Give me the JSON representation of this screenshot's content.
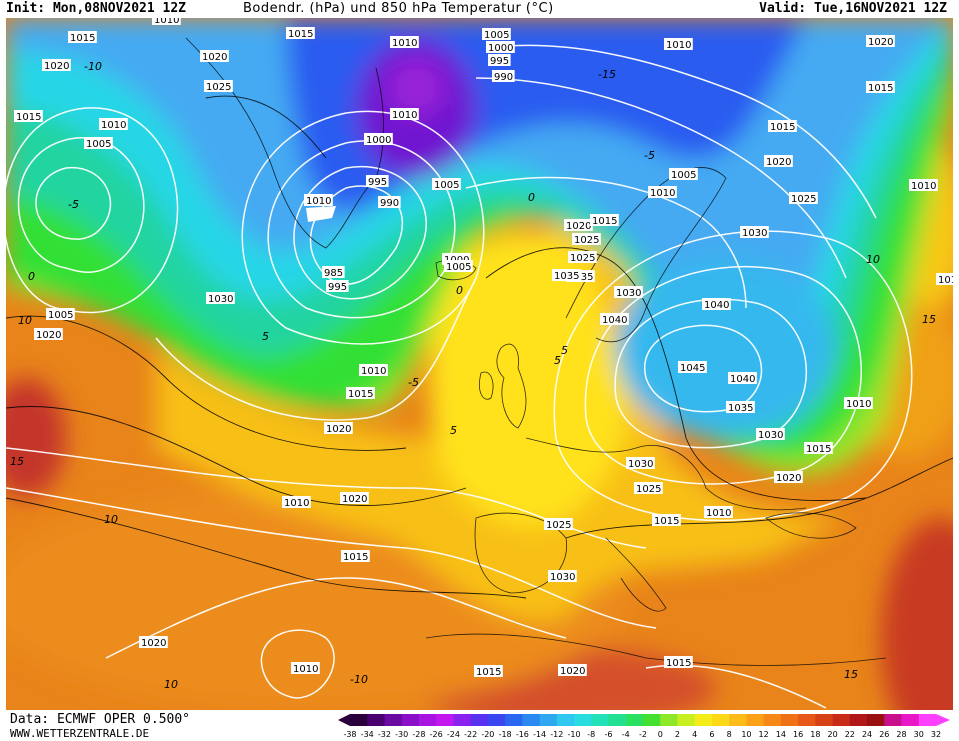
{
  "header": {
    "init": "Init: Mon,08NOV2021 12Z",
    "title": "Bodendr. (hPa) und 850 hPa Temperatur (°C)",
    "valid": "Valid: Tue,16NOV2021 12Z"
  },
  "footer": {
    "data_source": "Data: ECMWF OPER 0.500°",
    "website": "WWW.WETTERZENTRALE.DE"
  },
  "colors": {
    "deep_purple": "#3a005a",
    "purple": "#7a18c8",
    "blue": "#2046e8",
    "light_blue": "#3fa9f5",
    "cyan": "#22d8e6",
    "teal": "#20d49a",
    "green": "#2fe12f",
    "yellow_green": "#c9ef1d",
    "yellow": "#ffe61a",
    "orange": "#f6a414",
    "dark_orange": "#e5781a",
    "red": "#c8342a",
    "isobar": "#ffffff",
    "coastline": "#000000"
  },
  "color_scale": {
    "ticks": [
      "-38",
      "-34",
      "-32",
      "-30",
      "-28",
      "-26",
      "-24",
      "-22",
      "-20",
      "-18",
      "-16",
      "-14",
      "-12",
      "-10",
      "-8",
      "-6",
      "-4",
      "-2",
      "0",
      "2",
      "4",
      "6",
      "8",
      "10",
      "12",
      "14",
      "16",
      "18",
      "20",
      "22",
      "24",
      "26",
      "28",
      "30",
      "32"
    ],
    "colors": [
      "#2a003a",
      "#4a0070",
      "#6a0aa0",
      "#8a10c8",
      "#a814e0",
      "#c218f0",
      "#8a22f0",
      "#5a30f0",
      "#3a46f0",
      "#2a66f0",
      "#2a88f0",
      "#30a8f0",
      "#30c8f0",
      "#28dce0",
      "#22e0b8",
      "#22e090",
      "#2ae060",
      "#44e030",
      "#8ce828",
      "#c8f020",
      "#f4ec18",
      "#ffd818",
      "#ffbc18",
      "#fca018",
      "#f68818",
      "#f07018",
      "#e65818",
      "#d84018",
      "#c82c18",
      "#b01818",
      "#981010",
      "#c8108c",
      "#e818c8",
      "#ff40ff"
    ]
  },
  "isobar_labels": [
    {
      "text": "1010"
    },
    {
      "text": "1015"
    },
    {
      "text": "1020"
    },
    {
      "text": "1025"
    },
    {
      "text": "1015"
    },
    {
      "text": "1010"
    },
    {
      "text": "1005"
    },
    {
      "text": "1010"
    },
    {
      "text": "1005"
    },
    {
      "text": "1000"
    },
    {
      "text": "995"
    },
    {
      "text": "990"
    },
    {
      "text": "1010"
    },
    {
      "text": "1000"
    },
    {
      "text": "995"
    },
    {
      "text": "1010"
    },
    {
      "text": "990"
    },
    {
      "text": "1005"
    },
    {
      "text": "985"
    },
    {
      "text": "995"
    },
    {
      "text": "1000"
    },
    {
      "text": "1005"
    },
    {
      "text": "1010"
    },
    {
      "text": "1020"
    },
    {
      "text": "1015"
    },
    {
      "text": "1005"
    },
    {
      "text": "1010"
    },
    {
      "text": "1015"
    },
    {
      "text": "1020"
    },
    {
      "text": "1025"
    },
    {
      "text": "1030"
    },
    {
      "text": "1035"
    },
    {
      "text": "1040"
    },
    {
      "text": "1045"
    },
    {
      "text": "1040"
    },
    {
      "text": "1035"
    },
    {
      "text": "1030"
    },
    {
      "text": "1025"
    },
    {
      "text": "1020"
    },
    {
      "text": "1015"
    },
    {
      "text": "1010"
    },
    {
      "text": "1030"
    },
    {
      "text": "1020"
    },
    {
      "text": "1025"
    },
    {
      "text": "1020"
    },
    {
      "text": "1015"
    },
    {
      "text": "1020"
    },
    {
      "text": "1010"
    },
    {
      "text": "1015"
    },
    {
      "text": "1015"
    },
    {
      "text": "1025"
    },
    {
      "text": "1030"
    },
    {
      "text": "1020"
    },
    {
      "text": "1015"
    },
    {
      "text": "1010"
    },
    {
      "text": "1010"
    },
    {
      "text": "1015"
    },
    {
      "text": "1025"
    },
    {
      "text": "1030"
    },
    {
      "text": "1020"
    },
    {
      "text": "1010"
    },
    {
      "text": "1015"
    },
    {
      "text": "1020"
    },
    {
      "text": "1010"
    },
    {
      "text": "1005"
    },
    {
      "text": "1015"
    },
    {
      "text": "1020"
    },
    {
      "text": "1010"
    },
    {
      "text": "1035"
    },
    {
      "text": "1030"
    },
    {
      "text": "1040"
    }
  ],
  "temperature_labels": [
    {
      "text": "-10"
    },
    {
      "text": "-15"
    },
    {
      "text": "-5"
    },
    {
      "text": "0"
    },
    {
      "text": "5"
    },
    {
      "text": "10"
    },
    {
      "text": "15"
    },
    {
      "text": "-5"
    },
    {
      "text": "0"
    },
    {
      "text": "5"
    },
    {
      "text": "10"
    },
    {
      "text": "-5"
    },
    {
      "text": "0"
    },
    {
      "text": "5"
    },
    {
      "text": "10"
    },
    {
      "text": "15"
    },
    {
      "text": "-10"
    },
    {
      "text": "10"
    },
    {
      "text": "5"
    },
    {
      "text": "15"
    }
  ]
}
